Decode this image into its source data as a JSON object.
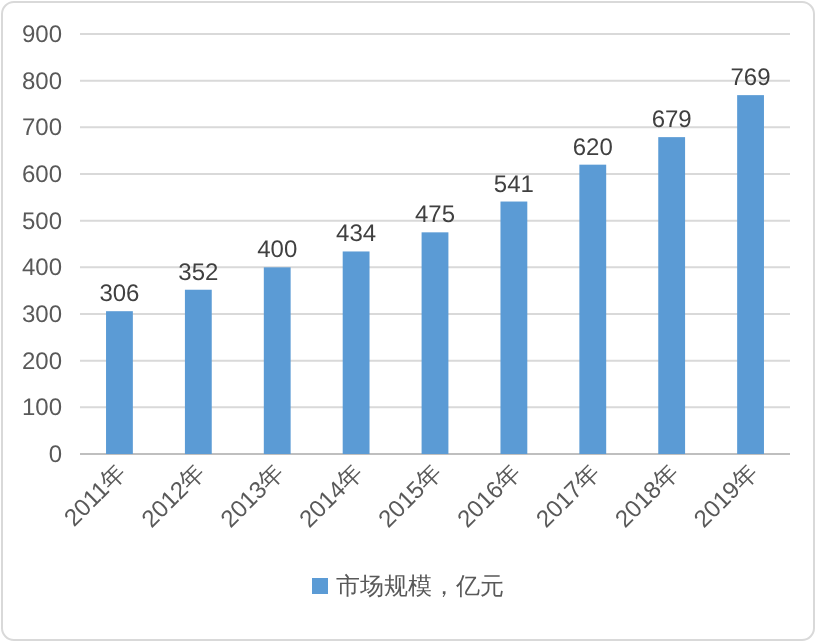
{
  "chart_data": {
    "type": "bar",
    "categories": [
      "2011年",
      "2012年",
      "2013年",
      "2014年",
      "2015年",
      "2016年",
      "2017年",
      "2018年",
      "2019年"
    ],
    "series": [
      {
        "name": "市场规模，亿元",
        "color": "#5b9bd5",
        "values": [
          306,
          352,
          400,
          434,
          475,
          541,
          620,
          679,
          769
        ]
      }
    ],
    "ylim": [
      0,
      900
    ],
    "yticks": [
      0,
      100,
      200,
      300,
      400,
      500,
      600,
      700,
      800,
      900
    ],
    "grid": "y",
    "data_labels": true,
    "legend": "bottom"
  }
}
